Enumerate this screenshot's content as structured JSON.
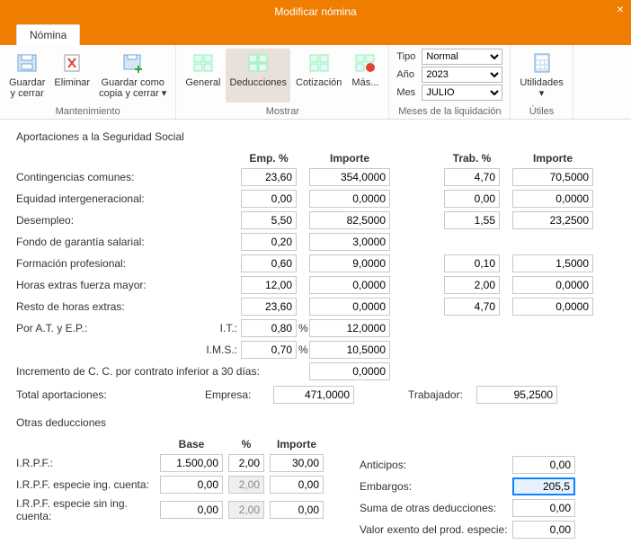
{
  "window": {
    "title": "Modificar nómina",
    "close": "×"
  },
  "tabs": {
    "nomina": "Nómina"
  },
  "ribbon": {
    "mantenimiento": {
      "caption": "Mantenimiento",
      "guardar_cerrar": "Guardar\ny cerrar",
      "eliminar": "Eliminar",
      "guardar_copia": "Guardar como\ncopia y cerrar ▾"
    },
    "mostrar": {
      "caption": "Mostrar",
      "general": "General",
      "deducciones": "Deducciones",
      "cotizacion": "Cotización",
      "mas": "Más..."
    },
    "liquidacion": {
      "caption": "Meses de la liquidación",
      "tipo_label": "Tipo",
      "tipo_value": "Normal",
      "anio_label": "Año",
      "anio_value": "2023",
      "mes_label": "Mes",
      "mes_value": "JULIO"
    },
    "utiles": {
      "caption": "Útiles",
      "utilidades": "Utilidades\n▾"
    }
  },
  "headers": {
    "emp_pct": "Emp. %",
    "importe": "Importe",
    "trab_pct": "Trab. %",
    "base": "Base",
    "pct": "%"
  },
  "sections": {
    "ss_title": "Aportaciones a la Seguridad Social",
    "otras_title": "Otras deducciones"
  },
  "ss": {
    "rows": [
      {
        "label": "Contingencias comunes:",
        "emp_pct": "23,60",
        "emp_imp": "354,0000",
        "trab_pct": "4,70",
        "trab_imp": "70,5000"
      },
      {
        "label": "Equidad intergeneracional:",
        "emp_pct": "0,00",
        "emp_imp": "0,0000",
        "trab_pct": "0,00",
        "trab_imp": "0,0000"
      },
      {
        "label": "Desempleo:",
        "emp_pct": "5,50",
        "emp_imp": "82,5000",
        "trab_pct": "1,55",
        "trab_imp": "23,2500"
      },
      {
        "label": "Fondo de garantía salarial:",
        "emp_pct": "0,20",
        "emp_imp": "3,0000"
      },
      {
        "label": "Formación profesional:",
        "emp_pct": "0,60",
        "emp_imp": "9,0000",
        "trab_pct": "0,10",
        "trab_imp": "1,5000"
      },
      {
        "label": "Horas extras fuerza mayor:",
        "emp_pct": "12,00",
        "emp_imp": "0,0000",
        "trab_pct": "2,00",
        "trab_imp": "0,0000"
      },
      {
        "label": "Resto de horas extras:",
        "emp_pct": "23,60",
        "emp_imp": "0,0000",
        "trab_pct": "4,70",
        "trab_imp": "0,0000"
      }
    ],
    "at_ep_label": "Por A.T. y E.P.:",
    "it_label": "I.T.:",
    "it_pct": "0,80",
    "it_imp": "12,0000",
    "ims_label": "I.M.S.:",
    "ims_pct": "0,70",
    "ims_imp": "10,5000",
    "pct_mark": "%",
    "incremento_label": "Incremento de C. C. por contrato inferior a 30 días:",
    "incremento_val": "0,0000",
    "total_label": "Total aportaciones:",
    "empresa_label": "Empresa:",
    "empresa_val": "471,0000",
    "trabajador_label": "Trabajador:",
    "trabajador_val": "95,2500"
  },
  "otras": {
    "rows": [
      {
        "label": "I.R.P.F.:",
        "base": "1.500,00",
        "pct": "2,00",
        "imp": "30,00",
        "pct_ro": false
      },
      {
        "label": "I.R.P.F. especie ing. cuenta:",
        "base": "0,00",
        "pct": "2,00",
        "imp": "0,00",
        "pct_ro": true
      },
      {
        "label": "I.R.P.F. especie sin ing. cuenta:",
        "base": "0,00",
        "pct": "2,00",
        "imp": "0,00",
        "pct_ro": true
      }
    ],
    "right": [
      {
        "label": "Anticipos:",
        "val": "0,00",
        "hl": false
      },
      {
        "label": "Embargos:",
        "val": "205,5",
        "hl": true
      },
      {
        "label": "Suma de otras deducciones:",
        "val": "0,00",
        "hl": false
      },
      {
        "label": "Valor exento del prod. especie:",
        "val": "0,00",
        "hl": false
      }
    ]
  }
}
